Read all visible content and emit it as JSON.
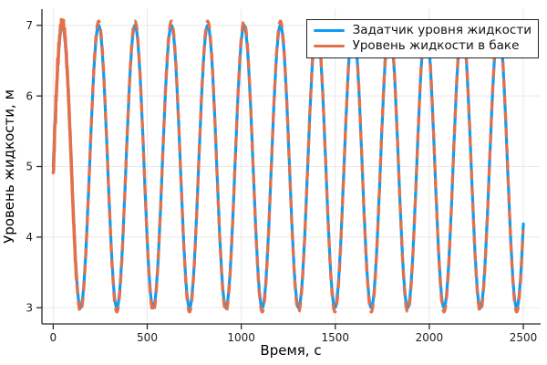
{
  "figure": {
    "background": "#ffffff",
    "spine_color": "#2a2a2a",
    "grid_color": "#e9e9e9",
    "tick_length": 6
  },
  "chart_data": {
    "type": "line",
    "title": "",
    "xlabel": "Время, с",
    "ylabel": "Уровень жидкости, м",
    "xlim": [
      -60,
      2587
    ],
    "ylim": [
      2.77,
      7.23
    ],
    "xticks": [
      0,
      500,
      1000,
      1500,
      2000,
      2500
    ],
    "xtick_labels": [
      "0",
      "500",
      "1000",
      "1500",
      "2000",
      "2500"
    ],
    "yticks": [
      3,
      4,
      5,
      6,
      7
    ],
    "ytick_labels": [
      "3",
      "4",
      "5",
      "6",
      "7"
    ],
    "grid": true,
    "legend_position": "top-right",
    "series": [
      {
        "name": "Задатчик уровня жидкости",
        "color": "#0D9DF5",
        "line_style": "solid",
        "line_width": 3.2,
        "waveform": {
          "kind": "sine",
          "mean": 5.0,
          "amplitude": 2.0,
          "period_s": 193.3,
          "phase": 0,
          "x_start": 0,
          "x_end": 2500,
          "sample_step": 2
        },
        "keypoints": {
          "y_start": 5.0,
          "y_end": 4.2,
          "y_max": 7.0,
          "y_min": 3.0,
          "first_peak_x": 48,
          "first_trough_x": 145
        }
      },
      {
        "name": "Уровень жидкости в баке",
        "color": "#E3704B",
        "line_style": "dashed",
        "line_width": 3.2,
        "dash": [
          11,
          7
        ],
        "waveform": {
          "kind": "sine",
          "mean": 5.0,
          "amplitude": 2.06,
          "period_s": 193.3,
          "phase": 0,
          "x_start": 0,
          "x_end": 2500,
          "sample_step": 2
        },
        "transient": {
          "y_start": 4.85,
          "settle_x": 125,
          "dip": -0.16,
          "dip_decay": 10,
          "jitter_amp": [
            0.1,
            0.08,
            0.05
          ],
          "jitter_freq": [
            1.9,
            0.83,
            7.1
          ],
          "jitter_phase": [
            0,
            2,
            0
          ],
          "jitter_decay": 90,
          "description": "noisy start, ragged first peak overshooting to ~7.05"
        },
        "keypoints": {
          "y_start": 4.85,
          "y_end": 4.2,
          "y_max": 7.06,
          "y_min": 2.94
        }
      }
    ]
  }
}
